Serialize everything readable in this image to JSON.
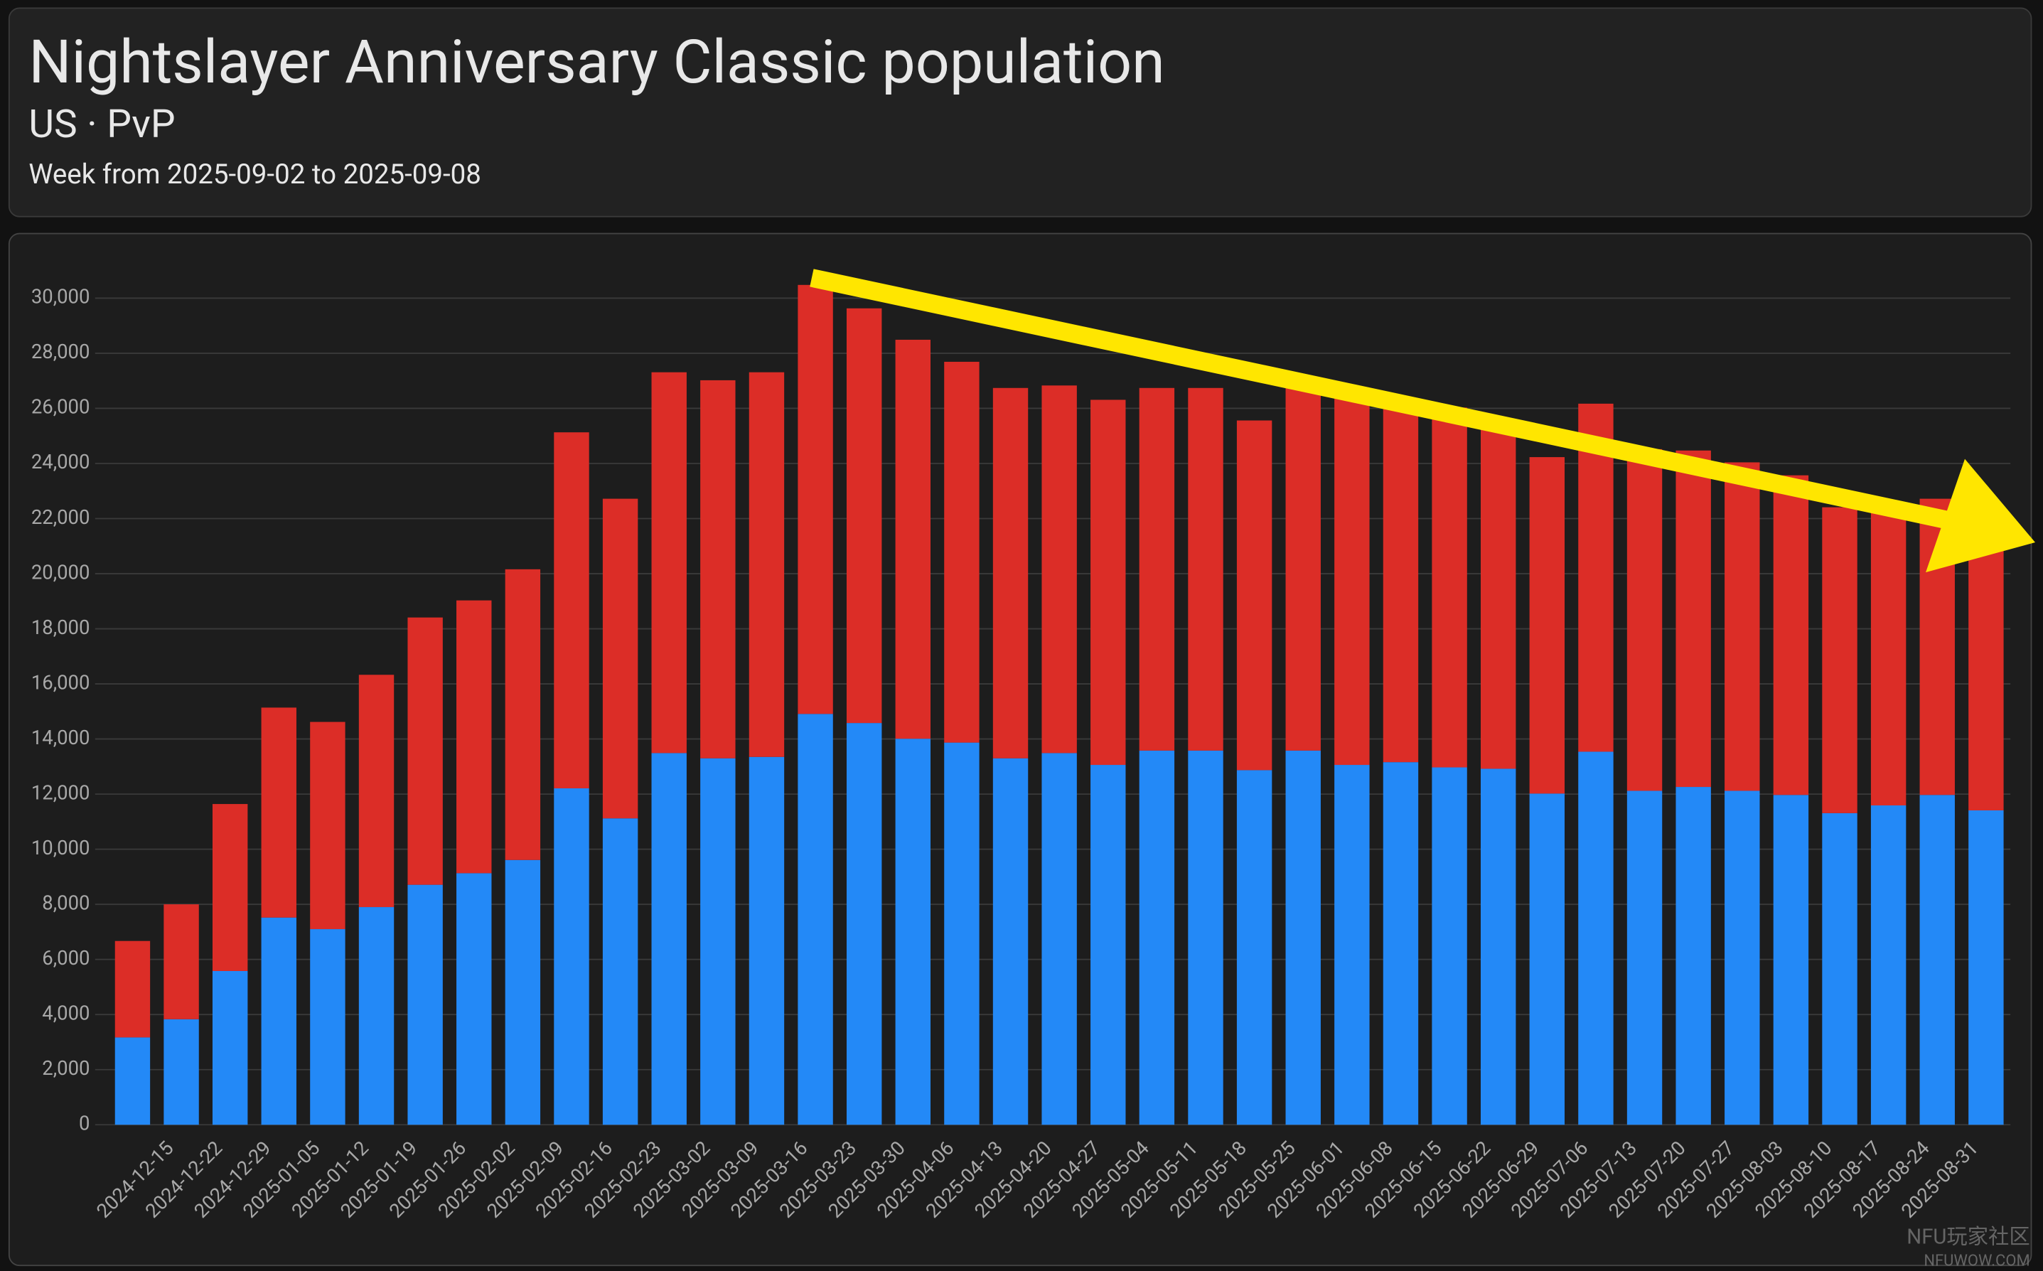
{
  "chart_data": {
    "type": "stacked-bar",
    "title": "Nightslayer Anniversary Classic population",
    "subtitle": "US · PvP",
    "period": "Week from 2025-09-02 to 2025-09-08",
    "watermark": "NFU玩家社区",
    "watermark_url": "NFUWOW.COM",
    "categories": [
      null,
      "2024-12-15",
      "2024-12-22",
      "2024-12-29",
      "2025-01-05",
      "2025-01-12",
      "2025-01-19",
      "2025-01-26",
      "2025-02-02",
      "2025-02-09",
      "2025-02-16",
      "2025-02-23",
      "2025-03-02",
      "2025-03-09",
      "2025-03-16",
      "2025-03-23",
      "2025-03-30",
      "2025-04-06",
      "2025-04-13",
      "2025-04-20",
      "2025-04-27",
      "2025-05-04",
      "2025-05-11",
      "2025-05-18",
      "2025-05-25",
      "2025-06-01",
      "2025-06-08",
      "2025-06-15",
      "2025-06-22",
      "2025-06-29",
      "2025-07-06",
      "2025-07-13",
      "2025-07-20",
      "2025-07-27",
      "2025-08-03",
      "2025-08-10",
      "2025-08-17",
      "2025-08-24",
      "2025-08-31"
    ],
    "series": [
      {
        "color": "#2389f7",
        "values": [
          3170,
          3830,
          5580,
          7520,
          7100,
          7900,
          8710,
          9130,
          9610,
          12210,
          11120,
          13490,
          13300,
          13350,
          14910,
          14580,
          14010,
          13870,
          13300,
          13490,
          13060,
          13580,
          13580,
          12870,
          13580,
          13060,
          13160,
          12970,
          12920,
          12020,
          13540,
          12120,
          12260,
          12120,
          11970,
          11310,
          11590,
          11970,
          11410
        ]
      },
      {
        "color": "#dc2d27",
        "values": [
          3500,
          4170,
          6060,
          7620,
          7520,
          8430,
          9700,
          9900,
          10550,
          12920,
          11600,
          13820,
          13720,
          13960,
          15570,
          15050,
          14480,
          13820,
          13440,
          13340,
          13250,
          13160,
          13160,
          12690,
          13160,
          13300,
          13150,
          13060,
          12680,
          12210,
          12630,
          12400,
          12210,
          11920,
          11600,
          11100,
          10890,
          10750,
          9790
        ]
      }
    ],
    "ylim": [
      0,
      30500
    ],
    "yticks": [
      0,
      {
        "value": 2000,
        "label": "2,000"
      },
      {
        "value": 4000,
        "label": "4,000"
      },
      {
        "value": 6000,
        "label": "6,000"
      },
      {
        "value": 8000,
        "label": "8,000"
      },
      {
        "value": 10000,
        "label": "10,000"
      },
      {
        "value": 12000,
        "label": "12,000"
      },
      {
        "value": 14000,
        "label": "14,000"
      },
      {
        "value": 16000,
        "label": "16,000"
      },
      {
        "value": 18000,
        "label": "18,000"
      },
      {
        "value": 20000,
        "label": "20,000"
      },
      {
        "value": 22000,
        "label": "22,000"
      },
      {
        "value": 24000,
        "label": "24,000"
      },
      {
        "value": 26000,
        "label": "26,000"
      },
      {
        "value": 28000,
        "label": "28,000"
      },
      {
        "value": 30000,
        "label": "30,000"
      }
    ],
    "grid": true
  }
}
